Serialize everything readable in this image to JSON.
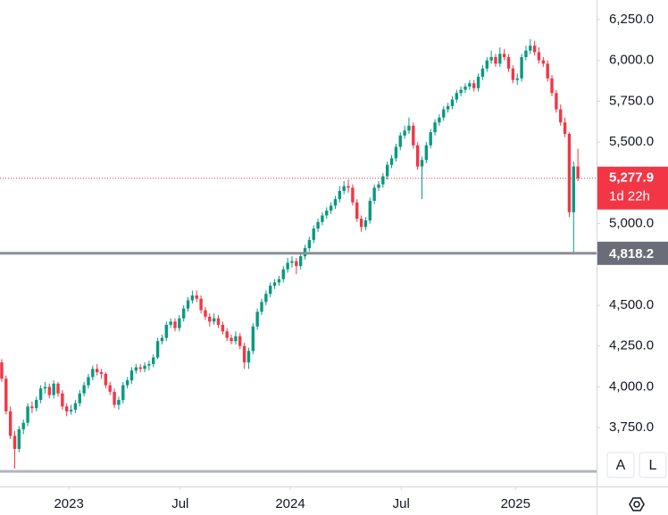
{
  "chart_data": {
    "type": "candlestick",
    "up_color": "#089981",
    "down_color": "#f23645",
    "ylim": [
      3390,
      6370
    ],
    "yticks": [
      {
        "value": 3750,
        "label": "3,750.0"
      },
      {
        "value": 4000,
        "label": "4,000.0"
      },
      {
        "value": 4250,
        "label": "4,250.0"
      },
      {
        "value": 4500,
        "label": "4,500.0"
      },
      {
        "value": 5000,
        "label": "5,000.0"
      },
      {
        "value": 5500,
        "label": "5,500.0"
      },
      {
        "value": 5750,
        "label": "5,750.0"
      },
      {
        "value": 6000,
        "label": "6,000.0"
      },
      {
        "value": 6250,
        "label": "6,250.0"
      }
    ],
    "xlim": [
      -0.4,
      137.3
    ],
    "xticks": [
      {
        "value": 15.5,
        "label": "2023"
      },
      {
        "value": 41.2,
        "label": "Jul"
      },
      {
        "value": 66.6,
        "label": "2024"
      },
      {
        "value": 92.2,
        "label": "Jul"
      },
      {
        "value": 118.6,
        "label": "2025"
      }
    ],
    "last_price": {
      "value": 5277.9,
      "label": "5,277.9"
    },
    "countdown": "1d 22h",
    "level": {
      "value": 4818.2,
      "label": "4,818.2"
    },
    "support_level": 3482,
    "buttons": [
      "A",
      "L"
    ],
    "candles": [
      [
        4150,
        4170,
        4030,
        4050
      ],
      [
        4050,
        4070,
        3830,
        3850
      ],
      [
        3850,
        3880,
        3680,
        3700
      ],
      [
        3700,
        3730,
        3500,
        3620
      ],
      [
        3620,
        3760,
        3600,
        3740
      ],
      [
        3740,
        3800,
        3710,
        3780
      ],
      [
        3780,
        3900,
        3760,
        3880
      ],
      [
        3880,
        3910,
        3840,
        3870
      ],
      [
        3870,
        3940,
        3850,
        3920
      ],
      [
        3920,
        4010,
        3900,
        3990
      ],
      [
        3990,
        4030,
        3960,
        4000
      ],
      [
        4000,
        4020,
        3930,
        3950
      ],
      [
        3950,
        4040,
        3930,
        4020
      ],
      [
        4020,
        4030,
        3940,
        3960
      ],
      [
        3960,
        3980,
        3860,
        3880
      ],
      [
        3880,
        3900,
        3820,
        3850
      ],
      [
        3850,
        3890,
        3830,
        3860
      ],
      [
        3860,
        3920,
        3840,
        3900
      ],
      [
        3900,
        3980,
        3880,
        3960
      ],
      [
        3960,
        4030,
        3940,
        4010
      ],
      [
        4010,
        4080,
        3990,
        4060
      ],
      [
        4060,
        4130,
        4040,
        4110
      ],
      [
        4110,
        4140,
        4070,
        4090
      ],
      [
        4090,
        4110,
        4050,
        4080
      ],
      [
        4080,
        4090,
        3990,
        4010
      ],
      [
        4010,
        4030,
        3950,
        3970
      ],
      [
        3970,
        3990,
        3870,
        3890
      ],
      [
        3890,
        3940,
        3860,
        3920
      ],
      [
        3920,
        4030,
        3900,
        4010
      ],
      [
        4010,
        4060,
        3990,
        4040
      ],
      [
        4040,
        4120,
        4020,
        4100
      ],
      [
        4100,
        4140,
        4080,
        4120
      ],
      [
        4120,
        4140,
        4090,
        4110
      ],
      [
        4110,
        4150,
        4090,
        4130
      ],
      [
        4130,
        4160,
        4100,
        4140
      ],
      [
        4140,
        4200,
        4120,
        4180
      ],
      [
        4180,
        4300,
        4170,
        4280
      ],
      [
        4280,
        4320,
        4260,
        4300
      ],
      [
        4300,
        4400,
        4280,
        4380
      ],
      [
        4380,
        4420,
        4360,
        4400
      ],
      [
        4400,
        4420,
        4340,
        4360
      ],
      [
        4360,
        4440,
        4340,
        4420
      ],
      [
        4420,
        4500,
        4400,
        4480
      ],
      [
        4480,
        4550,
        4460,
        4530
      ],
      [
        4530,
        4590,
        4510,
        4560
      ],
      [
        4560,
        4590,
        4520,
        4540
      ],
      [
        4540,
        4560,
        4450,
        4470
      ],
      [
        4470,
        4490,
        4410,
        4430
      ],
      [
        4430,
        4450,
        4370,
        4400
      ],
      [
        4400,
        4450,
        4380,
        4420
      ],
      [
        4420,
        4440,
        4360,
        4380
      ],
      [
        4380,
        4400,
        4320,
        4340
      ],
      [
        4340,
        4360,
        4280,
        4300
      ],
      [
        4300,
        4320,
        4260,
        4280
      ],
      [
        4280,
        4340,
        4260,
        4310
      ],
      [
        4310,
        4330,
        4230,
        4250
      ],
      [
        4250,
        4270,
        4110,
        4150
      ],
      [
        4150,
        4240,
        4110,
        4220
      ],
      [
        4220,
        4390,
        4200,
        4370
      ],
      [
        4370,
        4480,
        4350,
        4460
      ],
      [
        4460,
        4540,
        4440,
        4520
      ],
      [
        4520,
        4590,
        4500,
        4570
      ],
      [
        4570,
        4640,
        4550,
        4620
      ],
      [
        4620,
        4660,
        4600,
        4640
      ],
      [
        4640,
        4680,
        4620,
        4660
      ],
      [
        4660,
        4740,
        4640,
        4720
      ],
      [
        4720,
        4790,
        4700,
        4760
      ],
      [
        4760,
        4800,
        4730,
        4770
      ],
      [
        4770,
        4790,
        4690,
        4740
      ],
      [
        4740,
        4820,
        4720,
        4800
      ],
      [
        4800,
        4870,
        4780,
        4850
      ],
      [
        4850,
        4920,
        4830,
        4900
      ],
      [
        4900,
        4990,
        4880,
        4970
      ],
      [
        4970,
        5030,
        4950,
        5010
      ],
      [
        5010,
        5070,
        4990,
        5050
      ],
      [
        5050,
        5100,
        5030,
        5080
      ],
      [
        5080,
        5130,
        5060,
        5110
      ],
      [
        5110,
        5170,
        5090,
        5150
      ],
      [
        5150,
        5230,
        5130,
        5200
      ],
      [
        5200,
        5260,
        5180,
        5230
      ],
      [
        5230,
        5270,
        5190,
        5220
      ],
      [
        5220,
        5240,
        5110,
        5130
      ],
      [
        5130,
        5150,
        5010,
        5030
      ],
      [
        5030,
        5050,
        4950,
        4980
      ],
      [
        4980,
        5040,
        4960,
        5020
      ],
      [
        5020,
        5160,
        5000,
        5140
      ],
      [
        5140,
        5240,
        5120,
        5220
      ],
      [
        5220,
        5260,
        5200,
        5240
      ],
      [
        5240,
        5310,
        5220,
        5290
      ],
      [
        5290,
        5380,
        5270,
        5360
      ],
      [
        5360,
        5420,
        5340,
        5400
      ],
      [
        5400,
        5490,
        5380,
        5470
      ],
      [
        5470,
        5560,
        5450,
        5540
      ],
      [
        5540,
        5600,
        5520,
        5570
      ],
      [
        5570,
        5650,
        5550,
        5600
      ],
      [
        5600,
        5620,
        5460,
        5480
      ],
      [
        5480,
        5500,
        5330,
        5350
      ],
      [
        5350,
        5410,
        5150,
        5390
      ],
      [
        5390,
        5500,
        5370,
        5480
      ],
      [
        5480,
        5580,
        5460,
        5560
      ],
      [
        5560,
        5640,
        5540,
        5620
      ],
      [
        5620,
        5670,
        5600,
        5650
      ],
      [
        5650,
        5720,
        5630,
        5700
      ],
      [
        5700,
        5740,
        5680,
        5720
      ],
      [
        5720,
        5780,
        5700,
        5760
      ],
      [
        5760,
        5820,
        5740,
        5800
      ],
      [
        5800,
        5840,
        5780,
        5820
      ],
      [
        5820,
        5860,
        5800,
        5840
      ],
      [
        5840,
        5880,
        5820,
        5860
      ],
      [
        5860,
        5880,
        5810,
        5830
      ],
      [
        5830,
        5920,
        5810,
        5900
      ],
      [
        5900,
        5970,
        5880,
        5950
      ],
      [
        5950,
        6020,
        5930,
        6000
      ],
      [
        6000,
        6060,
        5980,
        6020
      ],
      [
        6020,
        6040,
        5960,
        5980
      ],
      [
        5980,
        6080,
        5960,
        6040
      ],
      [
        6040,
        6070,
        6000,
        6020
      ],
      [
        6020,
        6040,
        5930,
        5950
      ],
      [
        5950,
        5970,
        5860,
        5880
      ],
      [
        5880,
        5920,
        5850,
        5890
      ],
      [
        5890,
        6040,
        5870,
        6020
      ],
      [
        6020,
        6090,
        6000,
        6060
      ],
      [
        6060,
        6130,
        6040,
        6090
      ],
      [
        6090,
        6120,
        6030,
        6050
      ],
      [
        6050,
        6080,
        5980,
        6000
      ],
      [
        6000,
        6020,
        5960,
        5980
      ],
      [
        5980,
        6000,
        5870,
        5890
      ],
      [
        5890,
        5910,
        5780,
        5800
      ],
      [
        5800,
        5820,
        5680,
        5700
      ],
      [
        5700,
        5730,
        5600,
        5620
      ],
      [
        5620,
        5650,
        5530,
        5550
      ],
      [
        5550,
        5560,
        5040,
        5070
      ],
      [
        5070,
        5380,
        4818.2,
        5350
      ],
      [
        5350,
        5460,
        5260,
        5277.9
      ]
    ]
  }
}
